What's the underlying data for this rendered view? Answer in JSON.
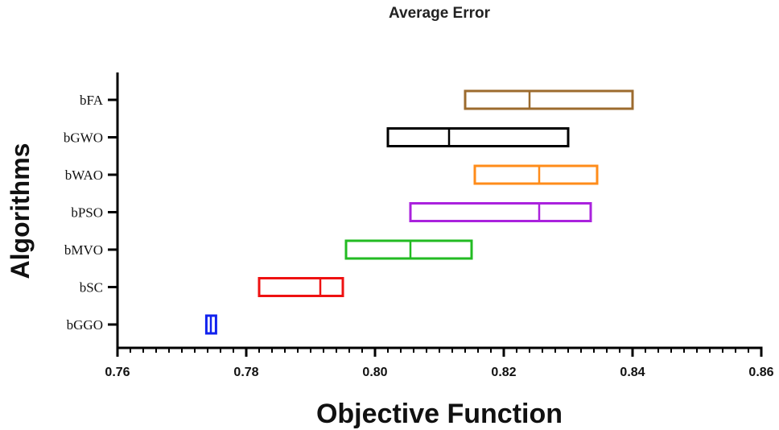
{
  "chart_data": {
    "type": "box",
    "title": "Average Error",
    "xlabel": "Objective Function",
    "ylabel": "Algorithms",
    "xlim": [
      0.76,
      0.86
    ],
    "xticks": [
      "0.76",
      "0.78",
      "0.80",
      "0.82",
      "0.84",
      "0.86"
    ],
    "categories": [
      "bFA",
      "bGWO",
      "bWAO",
      "bPSO",
      "bMVO",
      "bSC",
      "bGGO"
    ],
    "series": [
      {
        "category": "bFA",
        "q1": 0.814,
        "median": 0.824,
        "q3": 0.84,
        "color": "#9c6b2e"
      },
      {
        "category": "bGWO",
        "q1": 0.802,
        "median": 0.8115,
        "q3": 0.83,
        "color": "#000000"
      },
      {
        "category": "bWAO",
        "q1": 0.8155,
        "median": 0.8255,
        "q3": 0.8345,
        "color": "#ff8c1a"
      },
      {
        "category": "bPSO",
        "q1": 0.8055,
        "median": 0.8255,
        "q3": 0.8335,
        "color": "#aa22dd"
      },
      {
        "category": "bMVO",
        "q1": 0.7955,
        "median": 0.8055,
        "q3": 0.815,
        "color": "#22bb22"
      },
      {
        "category": "bSC",
        "q1": 0.782,
        "median": 0.7915,
        "q3": 0.795,
        "color": "#ee1111"
      },
      {
        "category": "bGGO",
        "q1": 0.7738,
        "median": 0.7745,
        "q3": 0.7753,
        "color": "#1122ee"
      }
    ],
    "grid": false,
    "legend": "none"
  }
}
